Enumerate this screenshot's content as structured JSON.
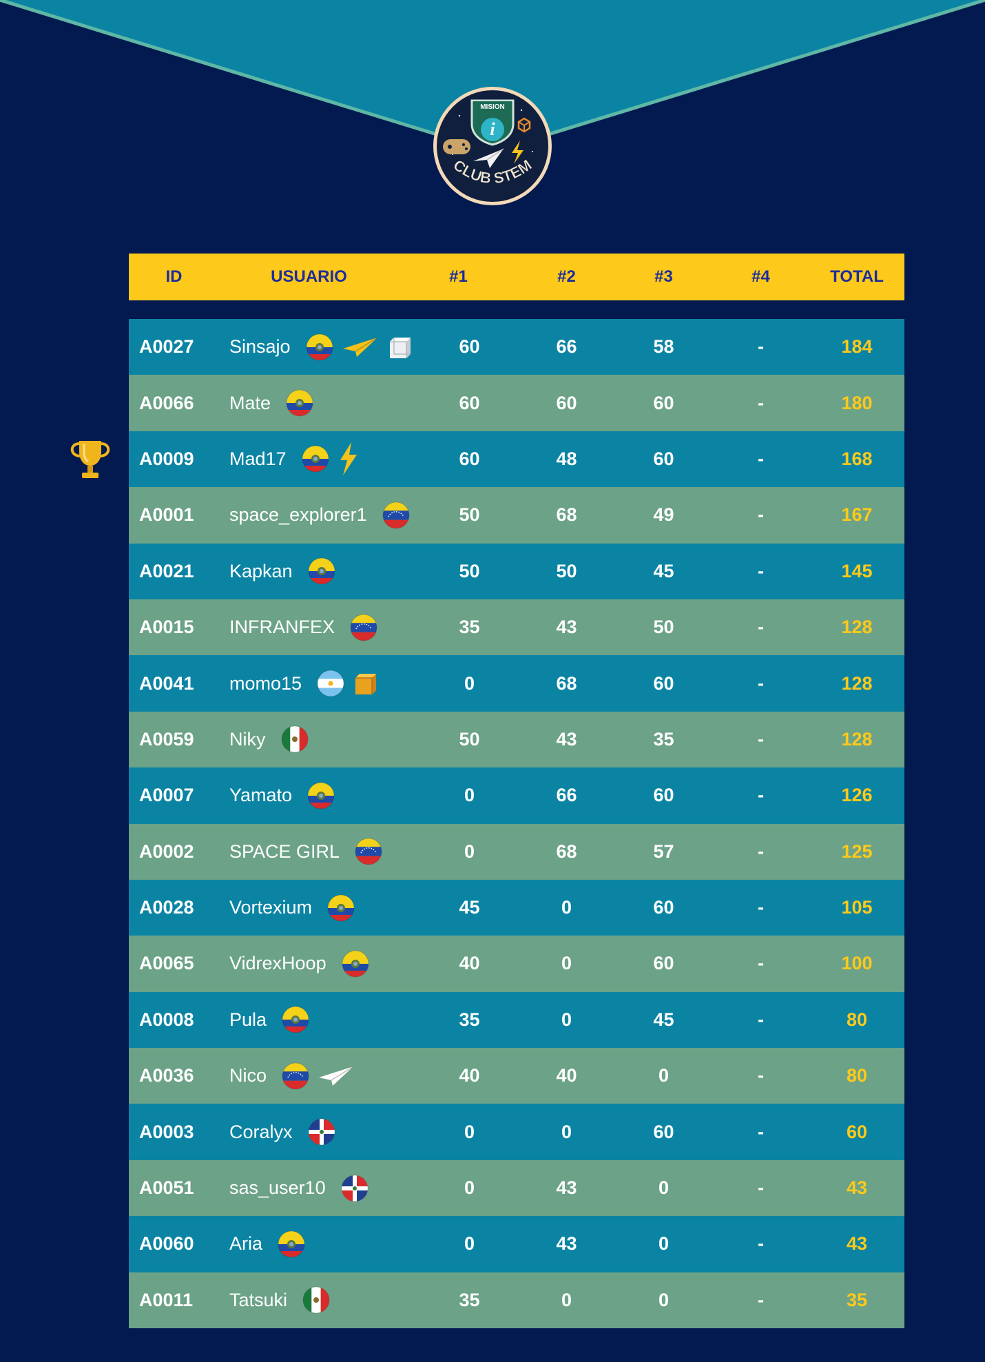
{
  "logo": {
    "top_text": "MISION",
    "bottom_text": "CLUB STEM"
  },
  "columns": [
    "ID",
    "USUARIO",
    "#1",
    "#2",
    "#3",
    "#4",
    "TOTAL"
  ],
  "colors": {
    "header_bg": "#fdc91b",
    "header_text": "#1d2d9c",
    "row_odd": "#0b84a3",
    "row_even": "#6ca287",
    "total_text": "#fdc91b",
    "page_bg": "#021a50"
  },
  "trophy_icon": "trophy-icon",
  "rows": [
    {
      "id": "A0027",
      "user": "Sinsajo",
      "flag": "ecuador",
      "badges": [
        "paper-plane-icon",
        "cube-icon"
      ],
      "s1": "60",
      "s2": "66",
      "s3": "58",
      "s4": "-",
      "total": "184"
    },
    {
      "id": "A0066",
      "user": "Mate",
      "flag": "ecuador",
      "badges": [],
      "s1": "60",
      "s2": "60",
      "s3": "60",
      "s4": "-",
      "total": "180"
    },
    {
      "id": "A0009",
      "user": "Mad17",
      "flag": "ecuador",
      "badges": [
        "lightning-icon"
      ],
      "s1": "60",
      "s2": "48",
      "s3": "60",
      "s4": "-",
      "total": "168"
    },
    {
      "id": "A0001",
      "user": "space_explorer1",
      "flag": "venezuela",
      "badges": [],
      "s1": "50",
      "s2": "68",
      "s3": "49",
      "s4": "-",
      "total": "167"
    },
    {
      "id": "A0021",
      "user": "Kapkan",
      "flag": "ecuador",
      "badges": [],
      "s1": "50",
      "s2": "50",
      "s3": "45",
      "s4": "-",
      "total": "145"
    },
    {
      "id": "A0015",
      "user": "INFRANFEX",
      "flag": "venezuela",
      "badges": [],
      "s1": "35",
      "s2": "43",
      "s3": "50",
      "s4": "-",
      "total": "128"
    },
    {
      "id": "A0041",
      "user": "momo15",
      "flag": "argentina",
      "badges": [
        "cube-icon"
      ],
      "s1": "0",
      "s2": "68",
      "s3": "60",
      "s4": "-",
      "total": "128"
    },
    {
      "id": "A0059",
      "user": "Niky",
      "flag": "mexico",
      "badges": [],
      "s1": "50",
      "s2": "43",
      "s3": "35",
      "s4": "-",
      "total": "128"
    },
    {
      "id": "A0007",
      "user": "Yamato",
      "flag": "ecuador",
      "badges": [],
      "s1": "0",
      "s2": "66",
      "s3": "60",
      "s4": "-",
      "total": "126"
    },
    {
      "id": "A0002",
      "user": "SPACE GIRL",
      "flag": "venezuela",
      "badges": [],
      "s1": "0",
      "s2": "68",
      "s3": "57",
      "s4": "-",
      "total": "125"
    },
    {
      "id": "A0028",
      "user": "Vortexium",
      "flag": "ecuador",
      "badges": [],
      "s1": "45",
      "s2": "0",
      "s3": "60",
      "s4": "-",
      "total": "105"
    },
    {
      "id": "A0065",
      "user": "VidrexHoop",
      "flag": "ecuador",
      "badges": [],
      "s1": "40",
      "s2": "0",
      "s3": "60",
      "s4": "-",
      "total": "100"
    },
    {
      "id": "A0008",
      "user": "Pula",
      "flag": "ecuador",
      "badges": [],
      "s1": "35",
      "s2": "0",
      "s3": "45",
      "s4": "-",
      "total": "80"
    },
    {
      "id": "A0036",
      "user": "Nico",
      "flag": "venezuela",
      "badges": [
        "paper-plane-icon"
      ],
      "s1": "40",
      "s2": "40",
      "s3": "0",
      "s4": "-",
      "total": "80"
    },
    {
      "id": "A0003",
      "user": "Coralyx",
      "flag": "dominican-republic",
      "badges": [],
      "s1": "0",
      "s2": "0",
      "s3": "60",
      "s4": "-",
      "total": "60"
    },
    {
      "id": "A0051",
      "user": "sas_user10",
      "flag": "dominican-republic",
      "badges": [],
      "s1": "0",
      "s2": "43",
      "s3": "0",
      "s4": "-",
      "total": "43"
    },
    {
      "id": "A0060",
      "user": "Aria",
      "flag": "ecuador",
      "badges": [],
      "s1": "0",
      "s2": "43",
      "s3": "0",
      "s4": "-",
      "total": "43"
    },
    {
      "id": "A0011",
      "user": "Tatsuki",
      "flag": "mexico",
      "badges": [],
      "s1": "35",
      "s2": "0",
      "s3": "0",
      "s4": "-",
      "total": "35"
    }
  ]
}
